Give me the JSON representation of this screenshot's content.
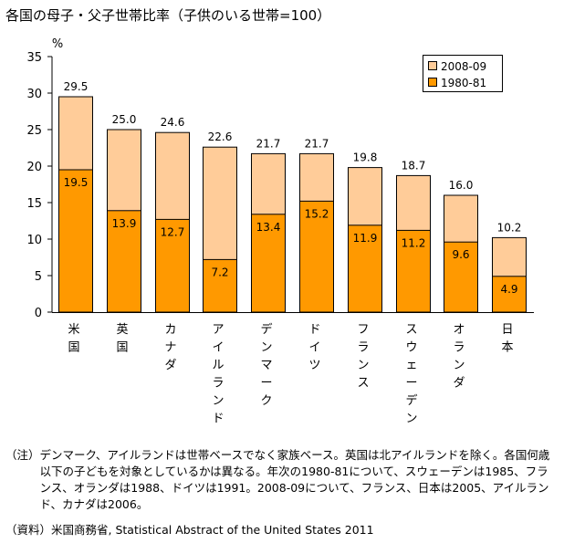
{
  "title": "各国の母子・父子世帯比率（子供のいる世帯=100）",
  "chart_data": {
    "type": "bar",
    "subtype": "overlapping",
    "title": "各国の母子・父子世帯比率（子供のいる世帯=100）",
    "ylabel": "%",
    "xlabel": "",
    "ylim": [
      0,
      35
    ],
    "yticks": [
      0,
      5,
      10,
      15,
      20,
      25,
      30,
      35
    ],
    "grid": false,
    "legend_position": "top-right",
    "categories": [
      "米国",
      "英国",
      "カナダ",
      "アイルランド",
      "デンマーク",
      "ドイツ",
      "フランス",
      "スウェーデン",
      "オランダ",
      "日本"
    ],
    "series": [
      {
        "name": "2008-09",
        "color": "#FFCC99",
        "values": [
          29.5,
          25.0,
          24.6,
          22.6,
          21.7,
          21.7,
          19.8,
          18.7,
          16.0,
          10.2
        ],
        "labels": [
          "29.5",
          "25.0",
          "24.6",
          "22.6",
          "21.7",
          "21.7",
          "19.8",
          "18.7",
          "16.0",
          "10.2"
        ]
      },
      {
        "name": "1980-81",
        "color": "#FF9900",
        "values": [
          19.5,
          13.9,
          12.7,
          7.2,
          13.4,
          15.2,
          11.9,
          11.2,
          9.6,
          4.9
        ],
        "labels": [
          "19.5",
          "13.9",
          "12.7",
          "7.2",
          "13.4",
          "15.2",
          "11.9",
          "11.2",
          "9.6",
          "4.9"
        ]
      }
    ]
  },
  "notes": {
    "prefix": "（注）",
    "text": "デンマーク、アイルランドは世帯ベースでなく家族ベース。英国は北アイルランドを除く。各国何歳以下の子どもを対象としているかは異なる。年次の1980-81について、スウェーデンは1985、フランス、オランダは1988、ドイツは1991。2008-09について、フランス、日本は2005、アイルランド、カナダは2006。"
  },
  "source": {
    "prefix": "（資料）",
    "text": "米国商務省, Statistical Abstract of the United States 2011"
  }
}
